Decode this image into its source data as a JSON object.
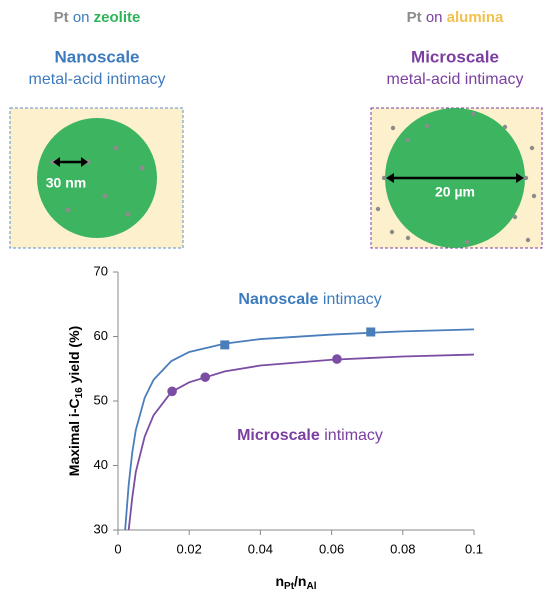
{
  "panels": [
    {
      "metal": "Pt",
      "on": "on",
      "support": "zeolite",
      "support_color": "#2fb45a",
      "scale": "Nanoscale",
      "desc": "metal-acid intimacy",
      "color": "#3d7bbf",
      "size_label": "30 nm"
    },
    {
      "metal": "Pt",
      "on": "on",
      "support": "alumina",
      "support_color": "#f2c14e",
      "scale": "Microscale",
      "desc": "metal-acid intimacy",
      "color": "#7b3fa0",
      "size_label": "20 µm"
    }
  ],
  "chart_data": {
    "type": "line",
    "xlim": [
      0,
      0.1
    ],
    "xticks": [
      0,
      0.02,
      0.04,
      0.06,
      0.08,
      0.1
    ],
    "ylim": [
      30,
      70
    ],
    "yticks": [
      30,
      40,
      50,
      60,
      70
    ],
    "y_label": [
      "Maximal i-C",
      "16",
      " yield (%)"
    ],
    "x_label": [
      "n",
      "Pt",
      "/n",
      "Al"
    ],
    "annotations": [
      {
        "bold": "Nanoscale",
        "text": "intimacy",
        "color": "#3d7bbf"
      },
      {
        "bold": "Microscale",
        "text": "intimacy",
        "color": "#7b3fa0"
      }
    ],
    "series": [
      {
        "type": "line",
        "color": "#4a7ebb",
        "x": [
          0.002,
          0.003,
          0.004,
          0.005,
          0.0075,
          0.01,
          0.015,
          0.02,
          0.03,
          0.04,
          0.06,
          0.08,
          0.1
        ],
        "values": [
          30,
          37,
          42,
          45.5,
          50.5,
          53.3,
          56.2,
          57.6,
          58.9,
          59.6,
          60.3,
          60.8,
          61.1
        ]
      },
      {
        "type": "line",
        "color": "#7b4ea3",
        "x": [
          0.003,
          0.004,
          0.005,
          0.0075,
          0.01,
          0.015,
          0.02,
          0.03,
          0.04,
          0.06,
          0.08,
          0.1
        ],
        "values": [
          30,
          35,
          39,
          44.5,
          47.8,
          51.4,
          52.9,
          54.6,
          55.5,
          56.4,
          56.9,
          57.2
        ]
      },
      {
        "type": "scatter",
        "marker": "square",
        "color": "#4a7ebb",
        "x": [
          0.03,
          0.071
        ],
        "values": [
          58.7,
          60.7
        ]
      },
      {
        "type": "scatter",
        "marker": "circle",
        "color": "#7b4ea3",
        "x": [
          0.0152,
          0.0245,
          0.0615
        ],
        "values": [
          51.5,
          53.7,
          56.5
        ]
      }
    ]
  }
}
